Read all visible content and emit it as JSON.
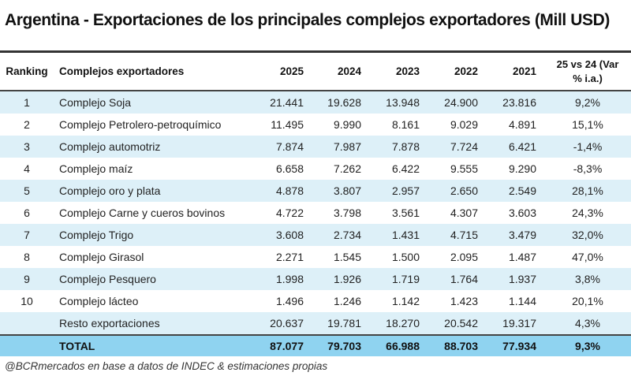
{
  "title": "Argentina - Exportaciones de los principales complejos exportadores (Mill USD)",
  "headers": {
    "ranking": "Ranking",
    "name": "Complejos exportadores",
    "y2025": "2025",
    "y2024": "2024",
    "y2023": "2023",
    "y2022": "2022",
    "y2021": "2021",
    "var_line1": "25 vs 24 (Var",
    "var_line2": "% i.a.)"
  },
  "rows": [
    {
      "rank": "1",
      "name": "Complejo Soja",
      "v2025": "21.441",
      "v2024": "19.628",
      "v2023": "13.948",
      "v2022": "24.900",
      "v2021": "23.816",
      "var": "9,2%"
    },
    {
      "rank": "2",
      "name": "Complejo Petrolero-petroquímico",
      "v2025": "11.495",
      "v2024": "9.990",
      "v2023": "8.161",
      "v2022": "9.029",
      "v2021": "4.891",
      "var": "15,1%"
    },
    {
      "rank": "3",
      "name": "Complejo automotriz",
      "v2025": "7.874",
      "v2024": "7.987",
      "v2023": "7.878",
      "v2022": "7.724",
      "v2021": "6.421",
      "var": "-1,4%"
    },
    {
      "rank": "4",
      "name": "Complejo maíz",
      "v2025": "6.658",
      "v2024": "7.262",
      "v2023": "6.422",
      "v2022": "9.555",
      "v2021": "9.290",
      "var": "-8,3%"
    },
    {
      "rank": "5",
      "name": "Complejo oro y plata",
      "v2025": "4.878",
      "v2024": "3.807",
      "v2023": "2.957",
      "v2022": "2.650",
      "v2021": "2.549",
      "var": "28,1%"
    },
    {
      "rank": "6",
      "name": "Complejo Carne y cueros bovinos",
      "v2025": "4.722",
      "v2024": "3.798",
      "v2023": "3.561",
      "v2022": "4.307",
      "v2021": "3.603",
      "var": "24,3%"
    },
    {
      "rank": "7",
      "name": "Complejo Trigo",
      "v2025": "3.608",
      "v2024": "2.734",
      "v2023": "1.431",
      "v2022": "4.715",
      "v2021": "3.479",
      "var": "32,0%"
    },
    {
      "rank": "8",
      "name": "Complejo Girasol",
      "v2025": "2.271",
      "v2024": "1.545",
      "v2023": "1.500",
      "v2022": "2.095",
      "v2021": "1.487",
      "var": "47,0%"
    },
    {
      "rank": "9",
      "name": "Complejo Pesquero",
      "v2025": "1.998",
      "v2024": "1.926",
      "v2023": "1.719",
      "v2022": "1.764",
      "v2021": "1.937",
      "var": "3,8%"
    },
    {
      "rank": "10",
      "name": "Complejo lácteo",
      "v2025": "1.496",
      "v2024": "1.246",
      "v2023": "1.142",
      "v2022": "1.423",
      "v2021": "1.144",
      "var": "20,1%"
    },
    {
      "rank": "",
      "name": "Resto exportaciones",
      "v2025": "20.637",
      "v2024": "19.781",
      "v2023": "18.270",
      "v2022": "20.542",
      "v2021": "19.317",
      "var": "4,3%"
    }
  ],
  "total": {
    "label": "TOTAL",
    "v2025": "87.077",
    "v2024": "79.703",
    "v2023": "66.988",
    "v2022": "88.703",
    "v2021": "77.934",
    "var": "9,3%"
  },
  "footer": "@BCRmercados en base a datos de INDEC & estimaciones propias"
}
